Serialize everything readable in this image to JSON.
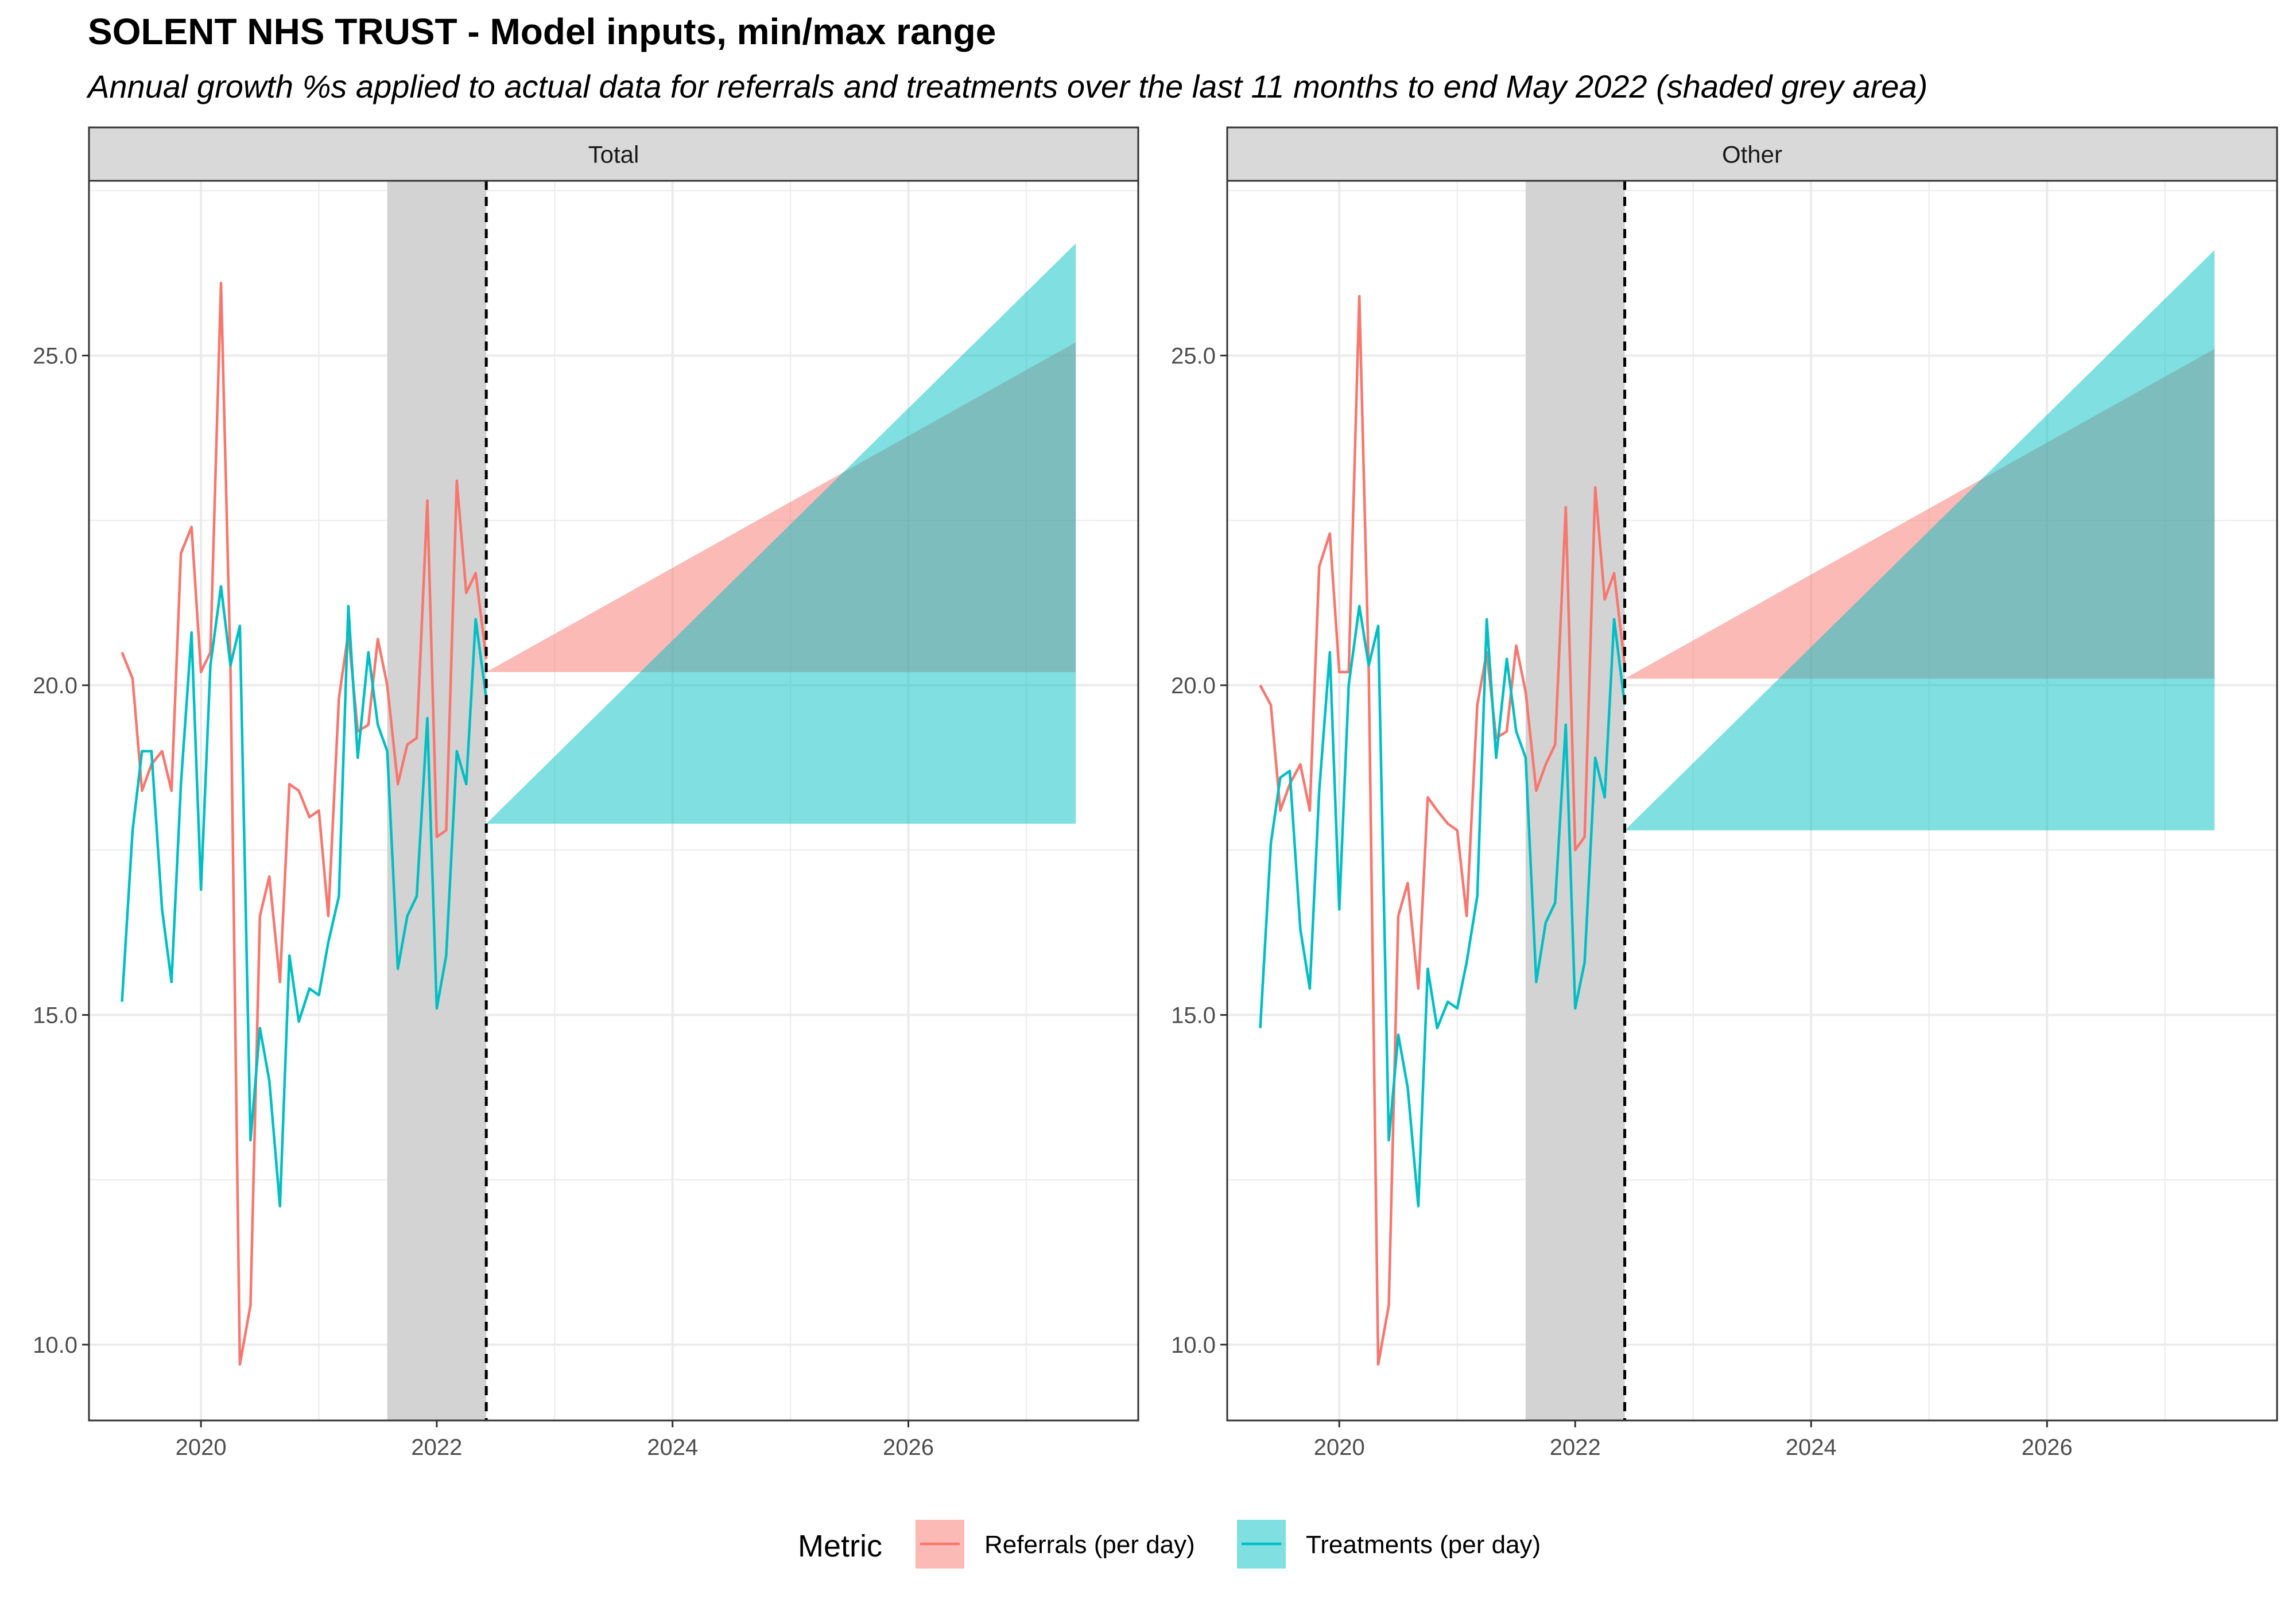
{
  "title": "SOLENT NHS TRUST - Model inputs, min/max range",
  "subtitle": "Annual growth %s applied to actual data for referrals and treatments over the last 11 months to end May 2022 (shaded grey area)",
  "colors": {
    "referrals": "#F8766D",
    "treatments": "#00BFC4",
    "panel_strip": "#D9D9D9",
    "shade": "#D3D3D3",
    "grid": "#EBEBEB",
    "border": "#333333"
  },
  "legend": {
    "title": "Metric",
    "placement": "bottom",
    "items": [
      {
        "label": "Referrals (per day)",
        "color": "#F8766D"
      },
      {
        "label": "Treatments (per day)",
        "color": "#00BFC4"
      }
    ]
  },
  "chart_data": [
    {
      "type": "line",
      "panel": "Total",
      "x_range": [
        2019.05,
        2027.95
      ],
      "y_range": [
        8.85,
        27.65
      ],
      "x_ticks": [
        2020,
        2022,
        2024,
        2026
      ],
      "x_tick_labels": [
        "2020",
        "2022",
        "2024",
        "2026"
      ],
      "y_ticks": [
        10,
        15,
        20,
        25
      ],
      "y_tick_labels": [
        "10.0",
        "15.0",
        "20.0",
        "25.0"
      ],
      "grid": true,
      "shaded_period": [
        2021.58,
        2022.42
      ],
      "forecast_start": 2022.42,
      "x": [
        2019.33,
        2019.42,
        2019.5,
        2019.58,
        2019.67,
        2019.75,
        2019.83,
        2019.92,
        2020.0,
        2020.08,
        2020.17,
        2020.25,
        2020.33,
        2020.42,
        2020.5,
        2020.58,
        2020.67,
        2020.75,
        2020.83,
        2020.92,
        2021.0,
        2021.08,
        2021.17,
        2021.25,
        2021.33,
        2021.42,
        2021.5,
        2021.58,
        2021.67,
        2021.75,
        2021.83,
        2021.92,
        2022.0,
        2022.08,
        2022.17,
        2022.25,
        2022.33,
        2022.42
      ],
      "series": [
        {
          "name": "Referrals (per day)",
          "values": [
            20.5,
            20.1,
            18.4,
            18.8,
            19.0,
            18.4,
            22.0,
            22.4,
            20.2,
            20.5,
            26.1,
            20.3,
            9.7,
            10.6,
            16.5,
            17.1,
            15.5,
            18.5,
            18.4,
            18.0,
            18.1,
            16.5,
            19.8,
            20.8,
            19.3,
            19.4,
            20.7,
            20.0,
            18.5,
            19.1,
            19.2,
            22.8,
            17.7,
            17.8,
            23.1,
            21.4,
            21.7,
            20.4
          ]
        },
        {
          "name": "Treatments (per day)",
          "values": [
            15.2,
            17.8,
            19.0,
            19.0,
            16.6,
            15.5,
            18.5,
            20.8,
            16.9,
            20.3,
            21.5,
            20.3,
            20.9,
            13.1,
            14.8,
            14.0,
            12.1,
            15.9,
            14.9,
            15.4,
            15.3,
            16.1,
            16.8,
            21.2,
            18.9,
            20.5,
            19.4,
            19.0,
            15.7,
            16.5,
            16.8,
            19.5,
            15.1,
            15.9,
            19.0,
            18.5,
            21.0,
            19.8
          ]
        }
      ],
      "ranges": [
        {
          "name": "Referrals (per day)",
          "x": [
            2022.42,
            2027.42
          ],
          "lower": 20.2,
          "upper_start": 20.2,
          "upper_end": 25.2
        },
        {
          "name": "Treatments (per day)",
          "x": [
            2022.42,
            2027.42
          ],
          "lower": 17.9,
          "upper_start": 17.9,
          "upper_end": 26.7
        }
      ]
    },
    {
      "type": "line",
      "panel": "Other",
      "x_range": [
        2019.05,
        2027.95
      ],
      "y_range": [
        8.85,
        27.65
      ],
      "x_ticks": [
        2020,
        2022,
        2024,
        2026
      ],
      "x_tick_labels": [
        "2020",
        "2022",
        "2024",
        "2026"
      ],
      "y_ticks": [
        10,
        15,
        20,
        25
      ],
      "y_tick_labels": [
        "10.0",
        "15.0",
        "20.0",
        "25.0"
      ],
      "grid": true,
      "shaded_period": [
        2021.58,
        2022.42
      ],
      "forecast_start": 2022.42,
      "x": [
        2019.33,
        2019.42,
        2019.5,
        2019.58,
        2019.67,
        2019.75,
        2019.83,
        2019.92,
        2020.0,
        2020.08,
        2020.17,
        2020.25,
        2020.33,
        2020.42,
        2020.5,
        2020.58,
        2020.67,
        2020.75,
        2020.83,
        2020.92,
        2021.0,
        2021.08,
        2021.17,
        2021.25,
        2021.33,
        2021.42,
        2021.5,
        2021.58,
        2021.67,
        2021.75,
        2021.83,
        2021.92,
        2022.0,
        2022.08,
        2022.17,
        2022.25,
        2022.33,
        2022.42
      ],
      "series": [
        {
          "name": "Referrals (per day)",
          "values": [
            20.0,
            19.7,
            18.1,
            18.5,
            18.8,
            18.1,
            21.8,
            22.3,
            20.2,
            20.2,
            25.9,
            20.2,
            9.7,
            10.6,
            16.5,
            17.0,
            15.4,
            18.3,
            18.1,
            17.9,
            17.8,
            16.5,
            19.7,
            20.5,
            19.2,
            19.3,
            20.6,
            19.9,
            18.4,
            18.8,
            19.1,
            22.7,
            17.5,
            17.7,
            23.0,
            21.3,
            21.7,
            20.3
          ]
        },
        {
          "name": "Treatments (per day)",
          "values": [
            14.8,
            17.6,
            18.6,
            18.7,
            16.3,
            15.4,
            18.4,
            20.5,
            16.6,
            20.0,
            21.2,
            20.3,
            20.9,
            13.1,
            14.7,
            13.9,
            12.1,
            15.7,
            14.8,
            15.2,
            15.1,
            15.8,
            16.8,
            21.0,
            18.9,
            20.4,
            19.3,
            18.9,
            15.5,
            16.4,
            16.7,
            19.4,
            15.1,
            15.8,
            18.9,
            18.3,
            21.0,
            19.7
          ]
        }
      ],
      "ranges": [
        {
          "name": "Referrals (per day)",
          "x": [
            2022.42,
            2027.42
          ],
          "lower": 20.1,
          "upper_start": 20.1,
          "upper_end": 25.1
        },
        {
          "name": "Treatments (per day)",
          "x": [
            2022.42,
            2027.42
          ],
          "lower": 17.8,
          "upper_start": 17.8,
          "upper_end": 26.6
        }
      ]
    }
  ]
}
